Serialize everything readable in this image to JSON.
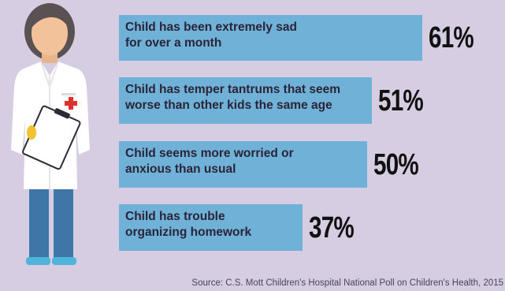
{
  "colors": {
    "background": "#d6cde3",
    "bar": "#6fb1d7",
    "label_text": "#2b2438",
    "value_text": "#111111"
  },
  "chart_data": {
    "type": "bar",
    "orientation": "horizontal",
    "categories": [
      "Child has been extremely sad\nfor over a month",
      "Child has temper tantrums that seem\nworse than other kids the same age",
      "Child seems more worried or\nanxious than usual",
      "Child has trouble\norganizing homework"
    ],
    "values": [
      61,
      51,
      50,
      37
    ],
    "value_labels": [
      "61%",
      "51%",
      "50%",
      "37%"
    ],
    "unit": "%"
  },
  "source": "Source: C.S. Mott Children's Hospital National Poll on Children's Health, 2015",
  "illustration": {
    "figure": "doctor-icon",
    "badge": "medical-cross-icon",
    "held_item": "clipboard-icon"
  }
}
